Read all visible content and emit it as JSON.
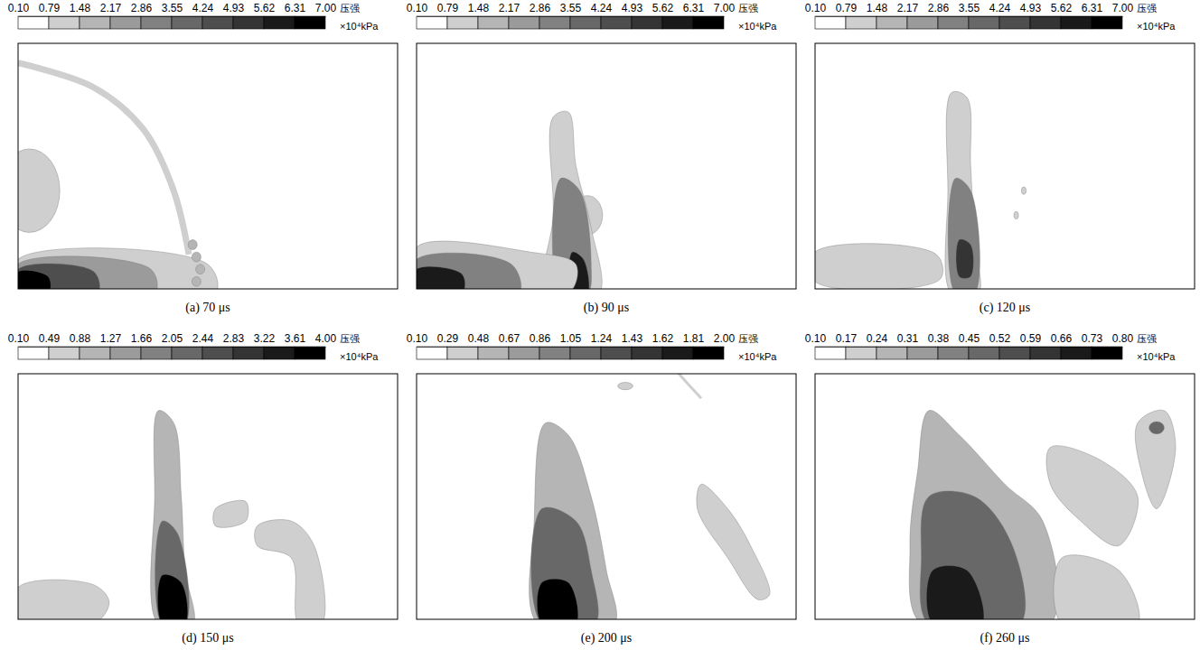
{
  "chart_data": [
    {
      "type": "contour",
      "title": "(a) 70 μs",
      "tick_labels": false,
      "colorbar": {
        "title": "压强",
        "unit": "×10⁴kPa",
        "range": [
          0.1,
          7.0
        ],
        "ticks": [
          {
            "value": 0.1,
            "label": "0.10"
          },
          0.79,
          1.48,
          2.17,
          2.86,
          3.55,
          4.24,
          4.93,
          5.62,
          6.31,
          {
            "value": 7.0,
            "label": "7.00"
          }
        ]
      }
    },
    {
      "type": "contour",
      "title": "(b) 90 μs",
      "tick_labels": false,
      "colorbar": {
        "title": "压强",
        "unit": "×10⁴kPa",
        "range": [
          0.1,
          7.0
        ],
        "ticks": [
          {
            "value": 0.1,
            "label": "0.10"
          },
          0.79,
          1.48,
          2.17,
          2.86,
          3.55,
          4.24,
          4.93,
          5.62,
          6.31,
          {
            "value": 7.0,
            "label": "7.00"
          }
        ]
      }
    },
    {
      "type": "contour",
      "title": "(c) 120 μs",
      "tick_labels": false,
      "colorbar": {
        "title": "压强",
        "unit": "×10⁴kPa",
        "range": [
          0.1,
          7.0
        ],
        "ticks": [
          {
            "value": 0.1,
            "label": "0.10"
          },
          0.79,
          1.48,
          2.17,
          2.86,
          3.55,
          4.24,
          4.93,
          5.62,
          6.31,
          {
            "value": 7.0,
            "label": "7.00"
          }
        ]
      }
    },
    {
      "type": "contour",
      "title": "(d) 150 μs",
      "tick_labels": false,
      "colorbar": {
        "title": "压强",
        "unit": "×10⁴kPa",
        "range": [
          0.1,
          4.0
        ],
        "ticks": [
          {
            "value": 0.1,
            "label": "0.10"
          },
          0.49,
          0.88,
          1.27,
          1.66,
          2.05,
          2.44,
          2.83,
          3.22,
          3.61,
          {
            "value": 4.0,
            "label": "4.00"
          }
        ]
      }
    },
    {
      "type": "contour",
      "title": "(e) 200 μs",
      "tick_labels": false,
      "colorbar": {
        "title": "压强",
        "unit": "×10⁴kPa",
        "range": [
          0.1,
          2.0
        ],
        "ticks": [
          {
            "value": 0.1,
            "label": "0.10"
          },
          0.29,
          0.48,
          0.67,
          0.86,
          1.05,
          1.24,
          1.43,
          1.62,
          1.81,
          {
            "value": 2.0,
            "label": "2.00"
          }
        ]
      }
    },
    {
      "type": "contour",
      "title": "(f) 260 μs",
      "tick_labels": false,
      "colorbar": {
        "title": "压强",
        "unit": "×10⁴kPa",
        "range": [
          0.1,
          0.8
        ],
        "ticks": [
          {
            "value": 0.1,
            "label": "0.10"
          },
          0.17,
          0.24,
          0.31,
          0.38,
          0.45,
          0.52,
          0.59,
          0.66,
          0.73,
          {
            "value": 0.8,
            "label": "0.80"
          }
        ]
      }
    }
  ]
}
